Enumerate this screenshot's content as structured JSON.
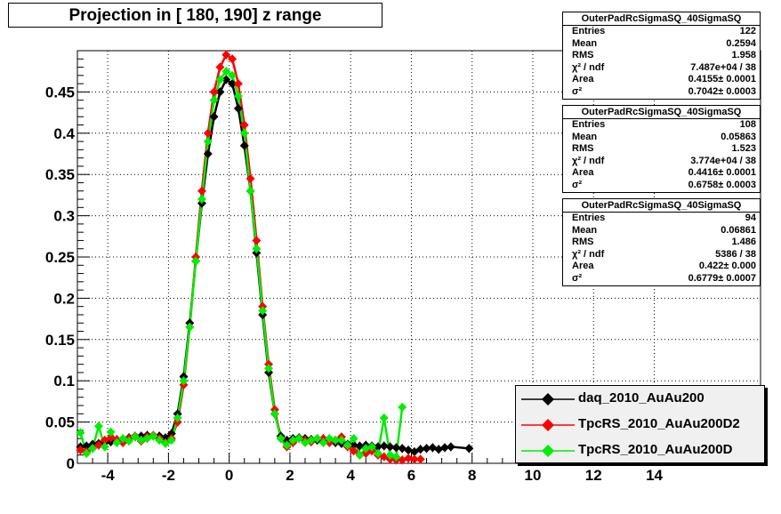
{
  "title": "Projection in [ 180, 190] z range",
  "stats_boxes": [
    {
      "name": "OuterPadRcSigmaSQ_40SigmaSQ",
      "rows": [
        [
          "Entries",
          "122"
        ],
        [
          "Mean",
          "0.2594"
        ],
        [
          "RMS",
          "1.958"
        ],
        [
          "χ² / ndf",
          "7.487e+04 / 38"
        ],
        [
          "Area",
          "0.4155± 0.0001"
        ],
        [
          "σ²",
          "0.7042± 0.0003"
        ]
      ]
    },
    {
      "name": "OuterPadRcSigmaSQ_40SigmaSQ",
      "rows": [
        [
          "Entries",
          "108"
        ],
        [
          "Mean",
          "0.05863"
        ],
        [
          "RMS",
          "1.523"
        ],
        [
          "χ² / ndf",
          "3.774e+04 / 38"
        ],
        [
          "Area",
          "0.4416± 0.0001"
        ],
        [
          "σ²",
          "0.6758± 0.0003"
        ]
      ]
    },
    {
      "name": "OuterPadRcSigmaSQ_40SigmaSQ",
      "rows": [
        [
          "Entries",
          "94"
        ],
        [
          "Mean",
          "0.06861"
        ],
        [
          "RMS",
          "1.486"
        ],
        [
          "χ² / ndf",
          "5386 / 38"
        ],
        [
          "Area",
          "0.422± 0.000"
        ],
        [
          "σ²",
          "0.6779± 0.0007"
        ]
      ]
    }
  ],
  "chart_data": {
    "type": "scatter",
    "title": "Projection in [ 180, 190] z range",
    "xlabel": "",
    "ylabel": "",
    "xlim": [
      -5,
      17.5
    ],
    "ylim": [
      0,
      0.5
    ],
    "grid": true,
    "legend_position": "bottom-right",
    "x_ticks": [
      -4,
      -2,
      0,
      2,
      4,
      6,
      8,
      10,
      12,
      14
    ],
    "y_ticks": [
      0,
      0.05,
      0.1,
      0.15,
      0.2,
      0.25,
      0.3,
      0.35,
      0.4,
      0.45
    ],
    "y_tick_labels": [
      "0",
      "0.05",
      "0.1",
      "0.15",
      "0.2",
      "0.25",
      "0.3",
      "0.35",
      "0.4",
      "0.45"
    ],
    "series": [
      {
        "name": "daq_2010_AuAu200",
        "color": "#000000",
        "x": [
          -4.9,
          -4.7,
          -4.5,
          -4.3,
          -4.1,
          -3.9,
          -3.7,
          -3.5,
          -3.3,
          -3.1,
          -2.9,
          -2.7,
          -2.5,
          -2.3,
          -2.1,
          -1.9,
          -1.7,
          -1.5,
          -1.3,
          -1.1,
          -0.9,
          -0.7,
          -0.5,
          -0.3,
          -0.1,
          0.1,
          0.3,
          0.5,
          0.7,
          0.9,
          1.1,
          1.3,
          1.5,
          1.7,
          1.9,
          2.1,
          2.3,
          2.5,
          2.7,
          2.9,
          3.1,
          3.3,
          3.5,
          3.7,
          3.9,
          4.1,
          4.3,
          4.5,
          4.7,
          4.9,
          5.1,
          5.3,
          5.5,
          5.7,
          5.9,
          6.1,
          6.3,
          6.5,
          6.7,
          6.9,
          7.1,
          7.3,
          7.9
        ],
        "y": [
          0.02,
          0.021,
          0.023,
          0.024,
          0.025,
          0.026,
          0.027,
          0.029,
          0.031,
          0.032,
          0.033,
          0.034,
          0.033,
          0.033,
          0.031,
          0.036,
          0.06,
          0.105,
          0.17,
          0.245,
          0.315,
          0.375,
          0.42,
          0.45,
          0.465,
          0.46,
          0.43,
          0.385,
          0.33,
          0.255,
          0.18,
          0.11,
          0.06,
          0.033,
          0.028,
          0.03,
          0.031,
          0.03,
          0.029,
          0.028,
          0.027,
          0.026,
          0.025,
          0.024,
          0.023,
          0.022,
          0.021,
          0.022,
          0.021,
          0.02,
          0.021,
          0.02,
          0.019,
          0.018,
          0.016,
          0.014,
          0.017,
          0.018,
          0.019,
          0.017,
          0.019,
          0.02,
          0.018
        ]
      },
      {
        "name": "TpcRS_2010_AuAu200D2",
        "color": "#ff0000",
        "x": [
          -4.9,
          -4.7,
          -4.5,
          -4.3,
          -4.1,
          -3.9,
          -3.7,
          -3.5,
          -3.3,
          -3.1,
          -2.9,
          -2.7,
          -2.5,
          -2.3,
          -2.1,
          -1.9,
          -1.7,
          -1.5,
          -1.3,
          -1.1,
          -0.9,
          -0.7,
          -0.5,
          -0.3,
          -0.1,
          0.1,
          0.3,
          0.5,
          0.7,
          0.9,
          1.1,
          1.3,
          1.5,
          1.7,
          1.9,
          2.1,
          2.3,
          2.5,
          2.7,
          2.9,
          3.1,
          3.3,
          3.5,
          3.7,
          3.9,
          4.1,
          4.3,
          4.5,
          4.7,
          4.9,
          5.1,
          5.3,
          5.5,
          5.7,
          5.9,
          6.1,
          6.3
        ],
        "y": [
          0.016,
          0.014,
          0.018,
          0.022,
          0.028,
          0.031,
          0.029,
          0.025,
          0.03,
          0.033,
          0.027,
          0.032,
          0.034,
          0.03,
          0.025,
          0.03,
          0.05,
          0.095,
          0.165,
          0.25,
          0.33,
          0.4,
          0.45,
          0.48,
          0.495,
          0.49,
          0.46,
          0.41,
          0.345,
          0.27,
          0.19,
          0.12,
          0.065,
          0.03,
          0.02,
          0.025,
          0.03,
          0.028,
          0.026,
          0.03,
          0.03,
          0.025,
          0.028,
          0.032,
          0.02,
          0.015,
          0.01,
          0.012,
          0.015,
          0.01,
          0.008,
          0.005,
          0.004,
          0.004,
          0.006,
          0.005,
          0.005
        ]
      },
      {
        "name": "TpcRS_2010_AuAu200D",
        "color": "#00ee00",
        "x": [
          -4.9,
          -4.7,
          -4.5,
          -4.3,
          -4.1,
          -3.9,
          -3.7,
          -3.5,
          -3.3,
          -3.1,
          -2.9,
          -2.7,
          -2.5,
          -2.3,
          -2.1,
          -1.9,
          -1.7,
          -1.5,
          -1.3,
          -1.1,
          -0.9,
          -0.7,
          -0.5,
          -0.3,
          -0.1,
          0.1,
          0.3,
          0.5,
          0.7,
          0.9,
          1.1,
          1.3,
          1.5,
          1.7,
          1.9,
          2.1,
          2.3,
          2.5,
          2.7,
          2.9,
          3.1,
          3.3,
          3.5,
          3.7,
          3.9,
          4.1,
          4.3,
          4.5,
          4.7,
          4.9,
          5.1,
          5.3,
          5.5,
          5.7
        ],
        "y": [
          0.037,
          0.012,
          0.018,
          0.045,
          0.02,
          0.038,
          0.025,
          0.03,
          0.027,
          0.032,
          0.028,
          0.03,
          0.033,
          0.028,
          0.024,
          0.028,
          0.055,
          0.1,
          0.165,
          0.245,
          0.32,
          0.39,
          0.44,
          0.465,
          0.475,
          0.47,
          0.445,
          0.4,
          0.33,
          0.26,
          0.185,
          0.115,
          0.06,
          0.03,
          0.022,
          0.028,
          0.03,
          0.025,
          0.028,
          0.03,
          0.025,
          0.03,
          0.028,
          0.028,
          0.022,
          0.03,
          0.01,
          0.018,
          0.02,
          0.012,
          0.055,
          0.01,
          0.008,
          0.068
        ]
      }
    ]
  }
}
